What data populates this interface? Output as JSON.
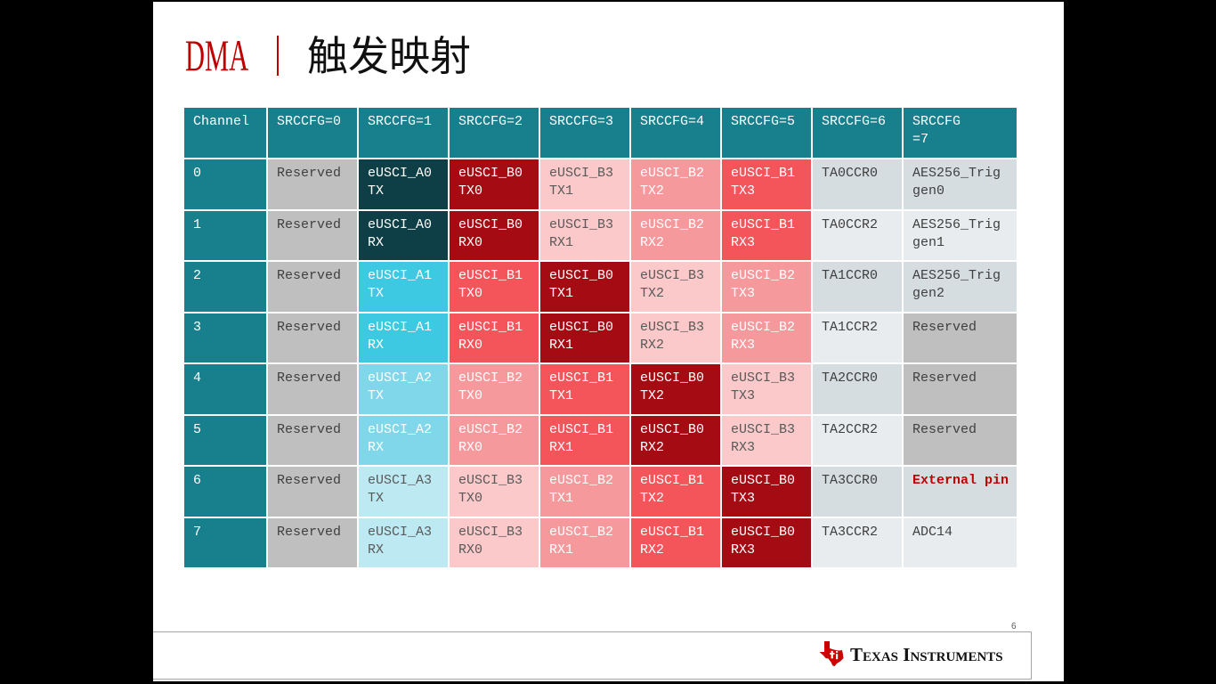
{
  "title": {
    "prefix": "DMA",
    "main": "触发映射"
  },
  "colors": {
    "accent": "#c00000",
    "header_bg": "#187f8c",
    "header_fg": "#ffffff",
    "channel_bg": "#187f8c",
    "channel_fg": "#ffffff",
    "logo_red": "#cc0000"
  },
  "table": {
    "header": [
      {
        "lines": [
          "Channel"
        ]
      },
      {
        "lines": [
          "SRCCFG=0"
        ]
      },
      {
        "lines": [
          "SRCCFG=1"
        ]
      },
      {
        "lines": [
          "SRCCFG=2"
        ]
      },
      {
        "lines": [
          "SRCCFG=3"
        ]
      },
      {
        "lines": [
          "SRCCFG=4"
        ]
      },
      {
        "lines": [
          "SRCCFG=5"
        ]
      },
      {
        "lines": [
          "SRCCFG=6"
        ]
      },
      {
        "lines": [
          "SRCCFG",
          "=7"
        ]
      }
    ],
    "rows": [
      {
        "channel": "0",
        "cells": [
          {
            "lines": [
              "Reserved"
            ],
            "bg": "#bfbfbf",
            "fg": "#404040"
          },
          {
            "lines": [
              "eUSCI_A0",
              "TX"
            ],
            "bg": "#0e3e46",
            "fg": "#ffffff"
          },
          {
            "lines": [
              "eUSCI_B0",
              "TX0"
            ],
            "bg": "#a50b12",
            "fg": "#ffffff"
          },
          {
            "lines": [
              "eUSCI_B3",
              "TX1"
            ],
            "bg": "#fbc9ca",
            "fg": "#5a5a5a"
          },
          {
            "lines": [
              "eUSCI_B2",
              "TX2"
            ],
            "bg": "#f6999c",
            "fg": "#ffffff"
          },
          {
            "lines": [
              "eUSCI_B1",
              "TX3"
            ],
            "bg": "#f3555b",
            "fg": "#ffffff"
          },
          {
            "lines": [
              "TA0CCR0"
            ],
            "bg": "#d5dde1",
            "fg": "#404040"
          },
          {
            "lines": [
              "AES256_Trig",
              "gen0"
            ],
            "bg": "#d5dde1",
            "fg": "#404040"
          }
        ]
      },
      {
        "channel": "1",
        "cells": [
          {
            "lines": [
              "Reserved"
            ],
            "bg": "#bfbfbf",
            "fg": "#404040"
          },
          {
            "lines": [
              "eUSCI_A0",
              "RX"
            ],
            "bg": "#0e3e46",
            "fg": "#ffffff"
          },
          {
            "lines": [
              "eUSCI_B0",
              "RX0"
            ],
            "bg": "#a50b12",
            "fg": "#ffffff"
          },
          {
            "lines": [
              "eUSCI_B3",
              "RX1"
            ],
            "bg": "#fbc9ca",
            "fg": "#5a5a5a"
          },
          {
            "lines": [
              "eUSCI_B2",
              "RX2"
            ],
            "bg": "#f6999c",
            "fg": "#ffffff"
          },
          {
            "lines": [
              "eUSCI_B1",
              "RX3"
            ],
            "bg": "#f3555b",
            "fg": "#ffffff"
          },
          {
            "lines": [
              "TA0CCR2"
            ],
            "bg": "#e9ecee",
            "fg": "#404040"
          },
          {
            "lines": [
              "AES256_Trig",
              "gen1"
            ],
            "bg": "#e9ecee",
            "fg": "#404040"
          }
        ]
      },
      {
        "channel": "2",
        "cells": [
          {
            "lines": [
              "Reserved"
            ],
            "bg": "#bfbfbf",
            "fg": "#404040"
          },
          {
            "lines": [
              "eUSCI_A1",
              "TX"
            ],
            "bg": "#3ec9e2",
            "fg": "#ffffff"
          },
          {
            "lines": [
              "eUSCI_B1",
              "TX0"
            ],
            "bg": "#f3555b",
            "fg": "#ffffff"
          },
          {
            "lines": [
              "eUSCI_B0",
              "TX1"
            ],
            "bg": "#a50b12",
            "fg": "#ffffff"
          },
          {
            "lines": [
              "eUSCI_B3",
              "TX2"
            ],
            "bg": "#fbc9ca",
            "fg": "#5a5a5a"
          },
          {
            "lines": [
              "eUSCI_B2",
              "TX3"
            ],
            "bg": "#f6999c",
            "fg": "#ffffff"
          },
          {
            "lines": [
              "TA1CCR0"
            ],
            "bg": "#d5dde1",
            "fg": "#404040"
          },
          {
            "lines": [
              "AES256_Trig",
              "gen2"
            ],
            "bg": "#d5dde1",
            "fg": "#404040"
          }
        ]
      },
      {
        "channel": "3",
        "cells": [
          {
            "lines": [
              "Reserved"
            ],
            "bg": "#bfbfbf",
            "fg": "#404040"
          },
          {
            "lines": [
              "eUSCI_A1",
              "RX"
            ],
            "bg": "#3ec9e2",
            "fg": "#ffffff"
          },
          {
            "lines": [
              "eUSCI_B1",
              "RX0"
            ],
            "bg": "#f3555b",
            "fg": "#ffffff"
          },
          {
            "lines": [
              "eUSCI_B0",
              "RX1"
            ],
            "bg": "#a50b12",
            "fg": "#ffffff"
          },
          {
            "lines": [
              "eUSCI_B3",
              "RX2"
            ],
            "bg": "#fbc9ca",
            "fg": "#5a5a5a"
          },
          {
            "lines": [
              "eUSCI_B2",
              "RX3"
            ],
            "bg": "#f6999c",
            "fg": "#ffffff"
          },
          {
            "lines": [
              "TA1CCR2"
            ],
            "bg": "#e9ecee",
            "fg": "#404040"
          },
          {
            "lines": [
              "Reserved"
            ],
            "bg": "#bfbfbf",
            "fg": "#404040"
          }
        ]
      },
      {
        "channel": "4",
        "cells": [
          {
            "lines": [
              "Reserved"
            ],
            "bg": "#bfbfbf",
            "fg": "#404040"
          },
          {
            "lines": [
              "eUSCI_A2",
              "TX"
            ],
            "bg": "#80d7e9",
            "fg": "#ffffff"
          },
          {
            "lines": [
              "eUSCI_B2",
              "TX0"
            ],
            "bg": "#f6999c",
            "fg": "#ffffff"
          },
          {
            "lines": [
              "eUSCI_B1",
              "TX1"
            ],
            "bg": "#f3555b",
            "fg": "#ffffff"
          },
          {
            "lines": [
              "eUSCI_B0",
              "TX2"
            ],
            "bg": "#a50b12",
            "fg": "#ffffff"
          },
          {
            "lines": [
              "eUSCI_B3",
              "TX3"
            ],
            "bg": "#fbc9ca",
            "fg": "#5a5a5a"
          },
          {
            "lines": [
              "TA2CCR0"
            ],
            "bg": "#d5dde1",
            "fg": "#404040"
          },
          {
            "lines": [
              "Reserved"
            ],
            "bg": "#bfbfbf",
            "fg": "#404040"
          }
        ]
      },
      {
        "channel": "5",
        "cells": [
          {
            "lines": [
              "Reserved"
            ],
            "bg": "#bfbfbf",
            "fg": "#404040"
          },
          {
            "lines": [
              "eUSCI_A2",
              "RX"
            ],
            "bg": "#80d7e9",
            "fg": "#ffffff"
          },
          {
            "lines": [
              "eUSCI_B2",
              "RX0"
            ],
            "bg": "#f6999c",
            "fg": "#ffffff"
          },
          {
            "lines": [
              "eUSCI_B1",
              "RX1"
            ],
            "bg": "#f3555b",
            "fg": "#ffffff"
          },
          {
            "lines": [
              "eUSCI_B0",
              "RX2"
            ],
            "bg": "#a50b12",
            "fg": "#ffffff"
          },
          {
            "lines": [
              "eUSCI_B3",
              "RX3"
            ],
            "bg": "#fbc9ca",
            "fg": "#5a5a5a"
          },
          {
            "lines": [
              "TA2CCR2"
            ],
            "bg": "#e9ecee",
            "fg": "#404040"
          },
          {
            "lines": [
              "Reserved"
            ],
            "bg": "#bfbfbf",
            "fg": "#404040"
          }
        ]
      },
      {
        "channel": "6",
        "cells": [
          {
            "lines": [
              "Reserved"
            ],
            "bg": "#bfbfbf",
            "fg": "#404040"
          },
          {
            "lines": [
              "eUSCI_A3",
              "TX"
            ],
            "bg": "#bde9f2",
            "fg": "#5a5a5a"
          },
          {
            "lines": [
              "eUSCI_B3",
              "TX0"
            ],
            "bg": "#fbc9ca",
            "fg": "#5a5a5a"
          },
          {
            "lines": [
              "eUSCI_B2",
              "TX1"
            ],
            "bg": "#f6999c",
            "fg": "#ffffff"
          },
          {
            "lines": [
              "eUSCI_B1",
              "TX2"
            ],
            "bg": "#f3555b",
            "fg": "#ffffff"
          },
          {
            "lines": [
              "eUSCI_B0",
              "TX3"
            ],
            "bg": "#a50b12",
            "fg": "#ffffff"
          },
          {
            "lines": [
              "TA3CCR0"
            ],
            "bg": "#d5dde1",
            "fg": "#404040"
          },
          {
            "lines": [
              "External pin"
            ],
            "bg": "#d5dde1",
            "fg": "#c00000",
            "bold": true
          }
        ]
      },
      {
        "channel": "7",
        "cells": [
          {
            "lines": [
              "Reserved"
            ],
            "bg": "#bfbfbf",
            "fg": "#404040"
          },
          {
            "lines": [
              "eUSCI_A3",
              "RX"
            ],
            "bg": "#bde9f2",
            "fg": "#5a5a5a"
          },
          {
            "lines": [
              "eUSCI_B3",
              "RX0"
            ],
            "bg": "#fbc9ca",
            "fg": "#5a5a5a"
          },
          {
            "lines": [
              "eUSCI_B2",
              "RX1"
            ],
            "bg": "#f6999c",
            "fg": "#ffffff"
          },
          {
            "lines": [
              "eUSCI_B1",
              "RX2"
            ],
            "bg": "#f3555b",
            "fg": "#ffffff"
          },
          {
            "lines": [
              "eUSCI_B0",
              "RX3"
            ],
            "bg": "#a50b12",
            "fg": "#ffffff"
          },
          {
            "lines": [
              "TA3CCR2"
            ],
            "bg": "#e9ecee",
            "fg": "#404040"
          },
          {
            "lines": [
              "ADC14"
            ],
            "bg": "#e9ecee",
            "fg": "#404040"
          }
        ]
      }
    ]
  },
  "slide_number": "6",
  "footer": {
    "logo_text": "Texas Instruments"
  }
}
